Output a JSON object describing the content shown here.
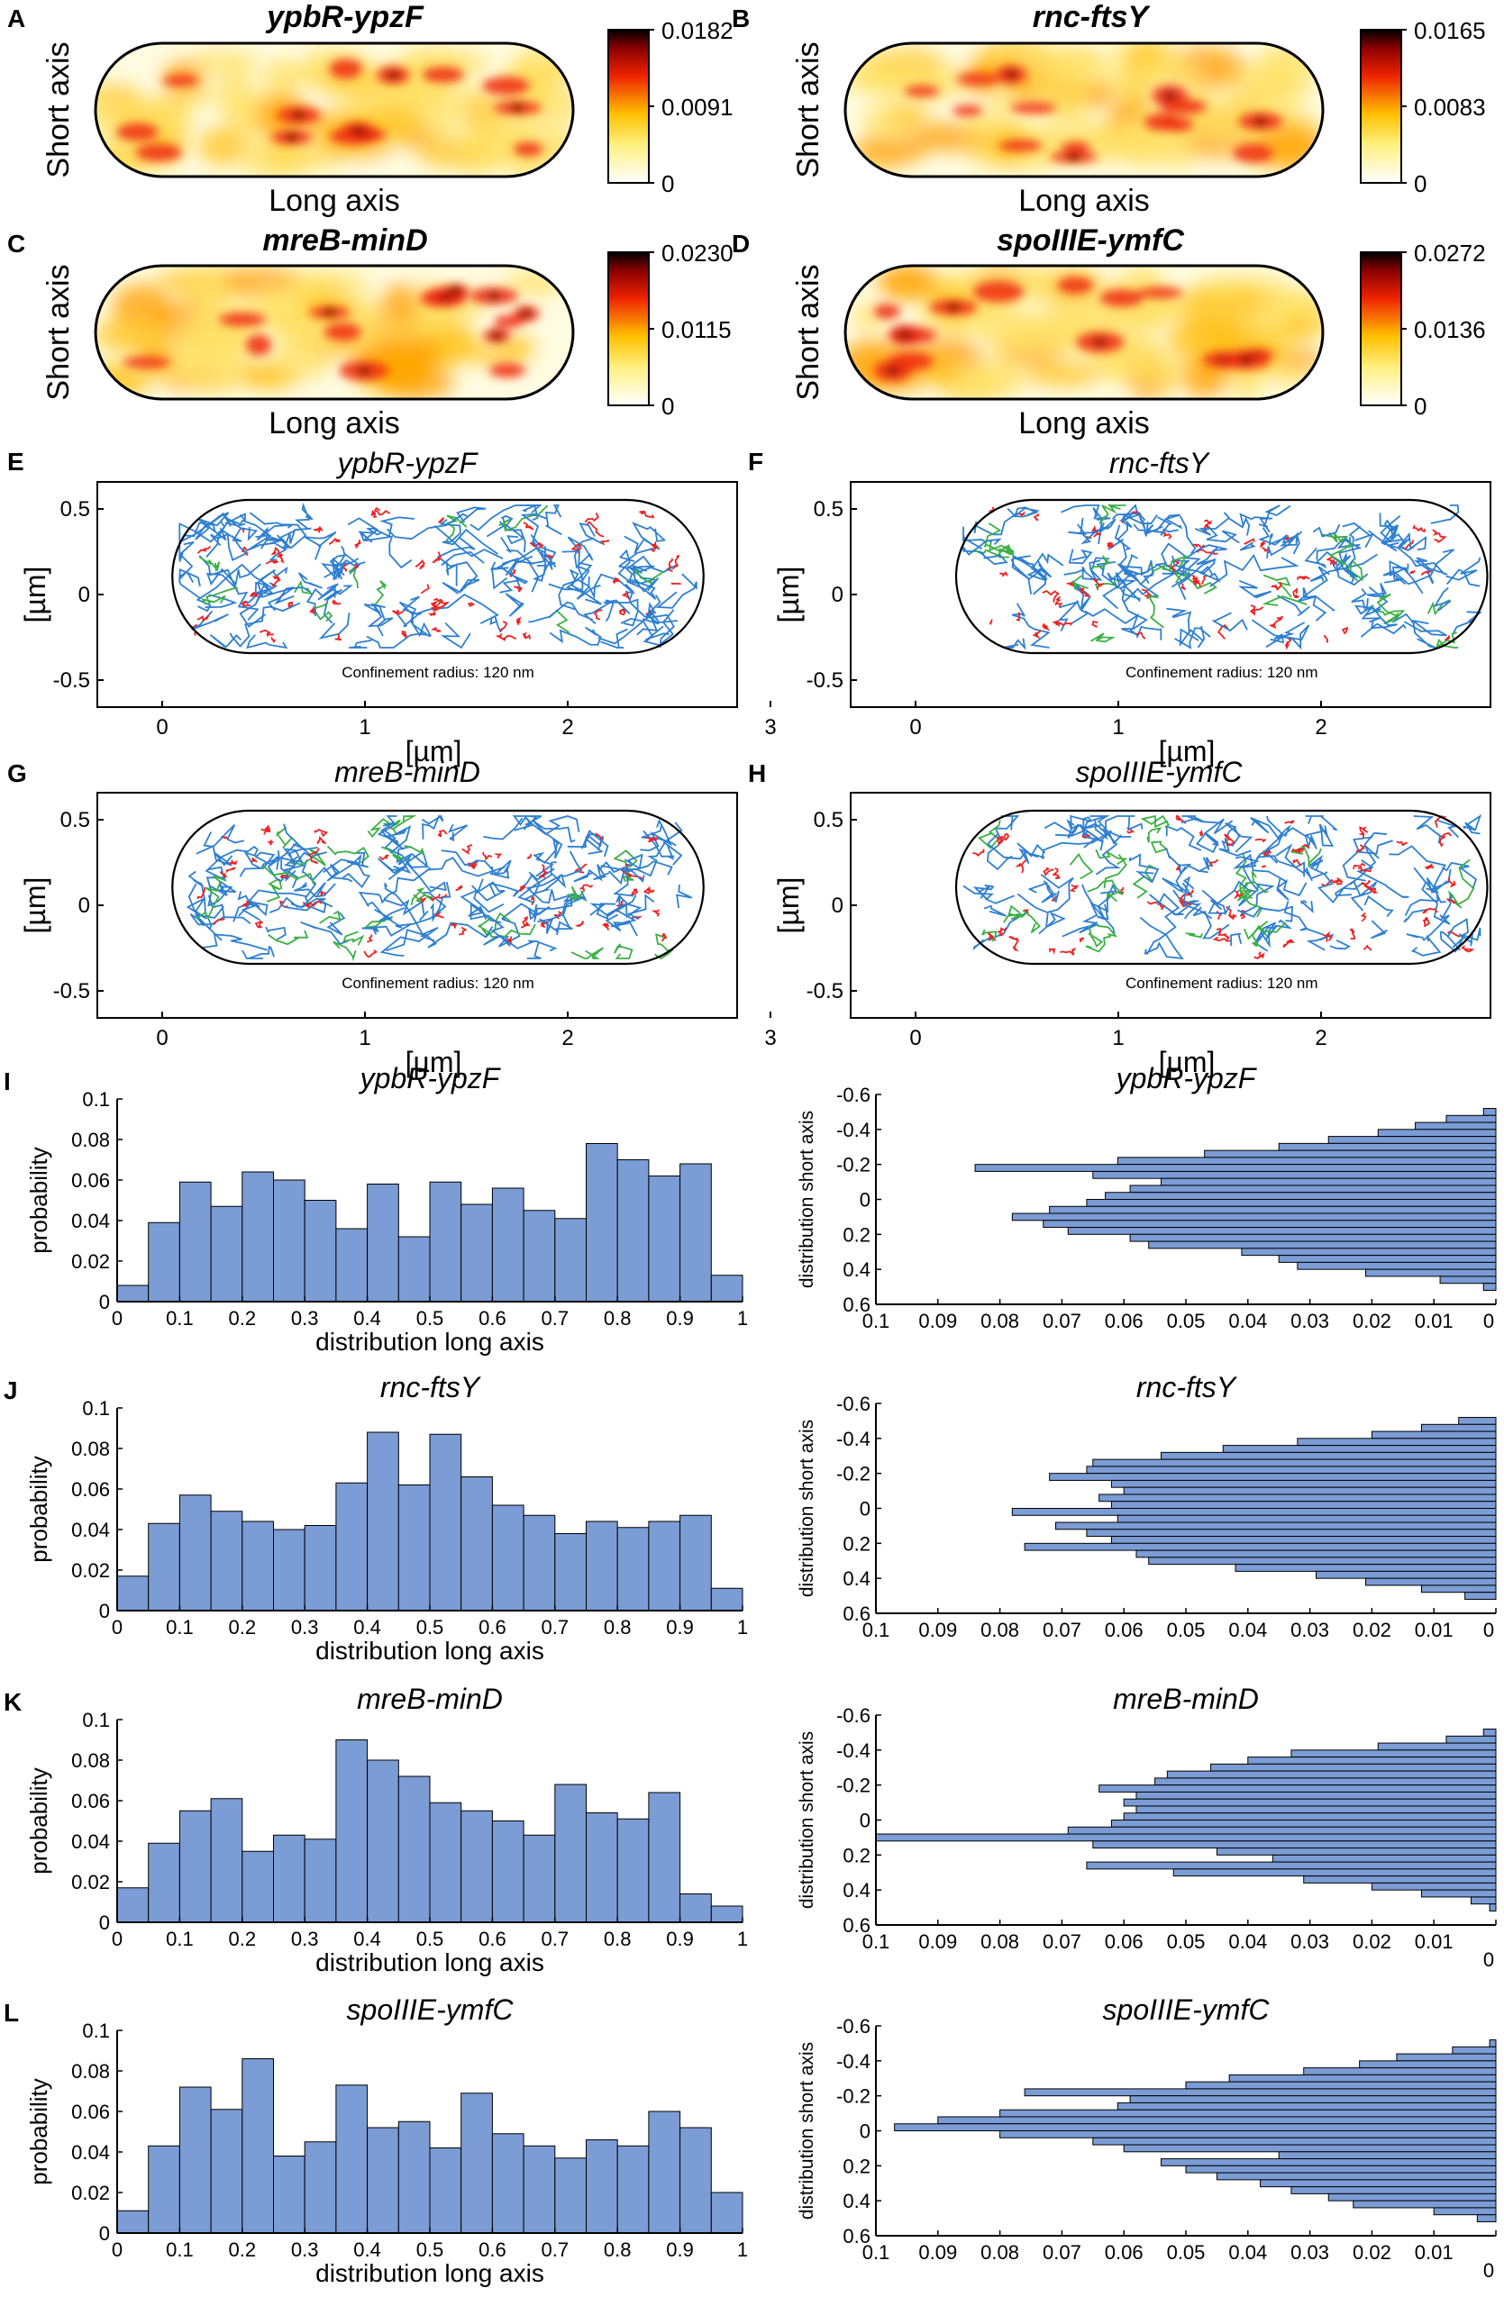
{
  "figure": {
    "heatmaps": [
      {
        "letter": "A",
        "title": "ypbR-ypzF",
        "cbar_ticks": [
          "0.0182",
          "0.0091",
          "0"
        ],
        "xlabel": "Long axis",
        "ylabel": "Short axis"
      },
      {
        "letter": "B",
        "title": "rnc-ftsY",
        "cbar_ticks": [
          "0.0165",
          "0.0083",
          "0"
        ],
        "xlabel": "Long axis",
        "ylabel": "Short axis"
      },
      {
        "letter": "C",
        "title": "mreB-minD",
        "cbar_ticks": [
          "0.0230",
          "0.0115",
          "0"
        ],
        "xlabel": "Long axis",
        "ylabel": "Short axis"
      },
      {
        "letter": "D",
        "title": "spoIIIE-ymfC",
        "cbar_ticks": [
          "0.0272",
          "0.0136",
          "0"
        ],
        "xlabel": "Long axis",
        "ylabel": "Short axis"
      }
    ],
    "trajectories": [
      {
        "letter": "E",
        "title": "ypbR-ypzF",
        "note": "Confinement radius: 120 nm"
      },
      {
        "letter": "F",
        "title": "rnc-ftsY",
        "note": "Confinement radius: 120 nm"
      },
      {
        "letter": "G",
        "title": "mreB-minD",
        "note": "Confinement radius: 120 nm"
      },
      {
        "letter": "H",
        "title": "spoIIIE-ymfC",
        "note": "Confinement radius: 120 nm"
      }
    ],
    "traj_axis": {
      "xlabel": "[µm]",
      "ylabel": "[µm]",
      "xticks": [
        "0",
        "1",
        "2",
        "3"
      ],
      "yticks": [
        "0.5",
        "0",
        "-0.5"
      ]
    },
    "long_axis_ticks": [
      "0",
      "0.1",
      "0.2",
      "0.3",
      "0.4",
      "0.5",
      "0.6",
      "0.7",
      "0.8",
      "0.9",
      "1"
    ],
    "prob_ticks": [
      "0",
      "0.02",
      "0.04",
      "0.06",
      "0.08",
      "0.1"
    ],
    "short_y_ticks": [
      "-0.6",
      "-0.4",
      "-0.2",
      "0",
      "0.2",
      "0.4",
      "0.6"
    ],
    "short_x_ticks": [
      "0.1",
      "0.09",
      "0.08",
      "0.07",
      "0.06",
      "0.05",
      "0.04",
      "0.03",
      "0.02",
      "0.01",
      "0"
    ],
    "colors": {
      "bar": "#7b9cd4",
      "blue_track": "#2f7fd0",
      "red_track": "#ee2222",
      "green_track": "#3cb043"
    }
  },
  "chart_data": [
    {
      "type": "bar",
      "panel": "I",
      "title": "ypbR-ypzF",
      "xlabel": "distribution long axis",
      "ylabel": "probability",
      "xlim": [
        0,
        1
      ],
      "ylim": [
        0,
        0.1
      ],
      "values": [
        0.008,
        0.039,
        0.059,
        0.047,
        0.064,
        0.06,
        0.05,
        0.036,
        0.058,
        0.032,
        0.059,
        0.048,
        0.056,
        0.045,
        0.041,
        0.078,
        0.07,
        0.062,
        0.068,
        0.013
      ]
    },
    {
      "type": "bar",
      "panel": "I-right",
      "title": "ypbR-ypzF",
      "orientation": "horizontal",
      "xlabel": "",
      "ylabel": "distribution short axis",
      "xlim": [
        0.1,
        0
      ],
      "ylim": [
        -0.6,
        0.6
      ],
      "y_centers": [
        -0.5,
        -0.46,
        -0.42,
        -0.38,
        -0.34,
        -0.3,
        -0.26,
        -0.22,
        -0.18,
        -0.14,
        -0.1,
        -0.06,
        -0.02,
        0.02,
        0.06,
        0.1,
        0.14,
        0.18,
        0.22,
        0.26,
        0.3,
        0.34,
        0.38,
        0.42,
        0.46,
        0.5
      ],
      "values": [
        0.002,
        0.008,
        0.013,
        0.019,
        0.027,
        0.035,
        0.047,
        0.061,
        0.084,
        0.065,
        0.054,
        0.059,
        0.063,
        0.066,
        0.072,
        0.078,
        0.073,
        0.069,
        0.059,
        0.056,
        0.041,
        0.035,
        0.032,
        0.021,
        0.009,
        0.002
      ]
    },
    {
      "type": "bar",
      "panel": "J",
      "title": "rnc-ftsY",
      "xlabel": "distribution long axis",
      "ylabel": "probability",
      "xlim": [
        0,
        1
      ],
      "ylim": [
        0,
        0.1
      ],
      "values": [
        0.017,
        0.043,
        0.057,
        0.049,
        0.044,
        0.04,
        0.042,
        0.063,
        0.088,
        0.062,
        0.087,
        0.066,
        0.052,
        0.047,
        0.038,
        0.044,
        0.041,
        0.044,
        0.047,
        0.011
      ]
    },
    {
      "type": "bar",
      "panel": "J-right",
      "title": "rnc-ftsY",
      "orientation": "horizontal",
      "xlabel": "",
      "ylabel": "distribution short axis",
      "xlim": [
        0.1,
        0
      ],
      "ylim": [
        -0.6,
        0.6
      ],
      "y_centers": [
        -0.5,
        -0.46,
        -0.42,
        -0.38,
        -0.34,
        -0.3,
        -0.26,
        -0.22,
        -0.18,
        -0.14,
        -0.1,
        -0.06,
        -0.02,
        0.02,
        0.06,
        0.1,
        0.14,
        0.18,
        0.22,
        0.26,
        0.3,
        0.34,
        0.38,
        0.42,
        0.46,
        0.5
      ],
      "values": [
        0.006,
        0.012,
        0.02,
        0.032,
        0.044,
        0.054,
        0.065,
        0.066,
        0.072,
        0.062,
        0.06,
        0.064,
        0.062,
        0.078,
        0.061,
        0.071,
        0.066,
        0.062,
        0.076,
        0.058,
        0.056,
        0.042,
        0.029,
        0.021,
        0.012,
        0.005
      ]
    },
    {
      "type": "bar",
      "panel": "K",
      "title": "mreB-minD",
      "xlabel": "distribution long axis",
      "ylabel": "probability",
      "xlim": [
        0,
        1
      ],
      "ylim": [
        0,
        0.1
      ],
      "values": [
        0.017,
        0.039,
        0.055,
        0.061,
        0.035,
        0.043,
        0.041,
        0.09,
        0.08,
        0.072,
        0.059,
        0.055,
        0.05,
        0.043,
        0.068,
        0.054,
        0.051,
        0.064,
        0.014,
        0.008
      ]
    },
    {
      "type": "bar",
      "panel": "K-right",
      "title": "mreB-minD",
      "orientation": "horizontal",
      "xlabel": "",
      "ylabel": "distribution short axis",
      "xlim": [
        0.1,
        0
      ],
      "ylim": [
        -0.6,
        0.6
      ],
      "y_centers": [
        -0.5,
        -0.46,
        -0.42,
        -0.38,
        -0.34,
        -0.3,
        -0.26,
        -0.22,
        -0.18,
        -0.14,
        -0.1,
        -0.06,
        -0.02,
        0.02,
        0.06,
        0.1,
        0.14,
        0.18,
        0.22,
        0.26,
        0.3,
        0.34,
        0.38,
        0.42,
        0.46,
        0.5
      ],
      "values": [
        0.002,
        0.008,
        0.019,
        0.033,
        0.04,
        0.046,
        0.053,
        0.055,
        0.064,
        0.058,
        0.06,
        0.058,
        0.06,
        0.062,
        0.069,
        0.1,
        0.065,
        0.045,
        0.036,
        0.066,
        0.052,
        0.031,
        0.02,
        0.012,
        0.004,
        0.001
      ]
    },
    {
      "type": "bar",
      "panel": "L",
      "title": "spoIIIE-ymfC",
      "xlabel": "distribution long axis",
      "ylabel": "probability",
      "xlim": [
        0,
        1
      ],
      "ylim": [
        0,
        0.1
      ],
      "values": [
        0.011,
        0.043,
        0.072,
        0.061,
        0.086,
        0.038,
        0.045,
        0.073,
        0.052,
        0.055,
        0.042,
        0.069,
        0.049,
        0.043,
        0.037,
        0.046,
        0.043,
        0.06,
        0.052,
        0.02
      ]
    },
    {
      "type": "bar",
      "panel": "L-right",
      "title": "spoIIIE-ymfC",
      "orientation": "horizontal",
      "xlabel": "",
      "ylabel": "distribution short axis",
      "xlim": [
        0.1,
        0
      ],
      "ylim": [
        -0.6,
        0.6
      ],
      "y_centers": [
        -0.5,
        -0.46,
        -0.42,
        -0.38,
        -0.34,
        -0.3,
        -0.26,
        -0.22,
        -0.18,
        -0.14,
        -0.1,
        -0.06,
        -0.02,
        0.02,
        0.06,
        0.1,
        0.14,
        0.18,
        0.22,
        0.26,
        0.3,
        0.34,
        0.38,
        0.42,
        0.46,
        0.5
      ],
      "values": [
        0.001,
        0.007,
        0.016,
        0.022,
        0.031,
        0.043,
        0.05,
        0.076,
        0.059,
        0.061,
        0.08,
        0.09,
        0.097,
        0.08,
        0.065,
        0.06,
        0.035,
        0.054,
        0.05,
        0.045,
        0.038,
        0.033,
        0.027,
        0.023,
        0.01,
        0.003
      ]
    }
  ]
}
